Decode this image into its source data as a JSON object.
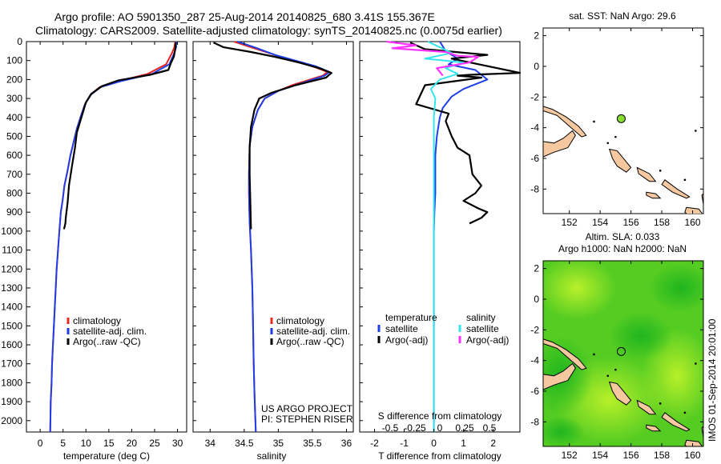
{
  "header": {
    "line1": "Argo profile: AO 5901350_287 25-Aug-2014 20140825_680 3.41S 155.367E",
    "line2": "Climatology: CARS2009. Satellite-adjusted climatology: synTS_20140825.nc (0.0075d earlier)"
  },
  "footer": {
    "stamp": "IMOS 01-Sep-2014 20:01:00"
  },
  "colors": {
    "climatology": "#e8241e",
    "satellite": "#1f3fe6",
    "argo": "#000000",
    "argo_sal_diff": "#ff33ff",
    "sat_sal_diff": "#33e6ee",
    "land": "#f5c8a0",
    "marker_sst": "#88dd33"
  },
  "chart_data": [
    {
      "type": "line",
      "ylabel": "",
      "xlabel": "temperature (deg C)",
      "xlim": [
        -3,
        32
      ],
      "ylim": [
        2060,
        0
      ],
      "xticks": [
        "0",
        "5",
        "10",
        "15",
        "20",
        "25",
        "30"
      ],
      "yticks": [
        "0",
        "100",
        "200",
        "300",
        "400",
        "500",
        "600",
        "700",
        "800",
        "900",
        "1000",
        "1100",
        "1200",
        "1300",
        "1400",
        "1500",
        "1600",
        "1700",
        "1800",
        "1900",
        "2000"
      ],
      "legend": [
        "climatology",
        "satellite-adj. clim.",
        "Argo(..raw -QC)"
      ],
      "legend_position": "lower-center",
      "series": [
        {
          "name": "climatology",
          "x": [
            29.5,
            29.3,
            28.8,
            27.5,
            23.5,
            17,
            13,
            11,
            9.8,
            8.8,
            8.0,
            7.3,
            6.6,
            6.0,
            5.3,
            4.9,
            4.5,
            4.2,
            3.9,
            3.6,
            3.4,
            3.2,
            3.0,
            2.8,
            2.6,
            2.5,
            2.3,
            2.2
          ],
          "y": [
            0,
            30,
            60,
            120,
            170,
            210,
            240,
            280,
            330,
            400,
            460,
            530,
            600,
            680,
            760,
            840,
            900,
            1000,
            1100,
            1200,
            1300,
            1400,
            1500,
            1600,
            1700,
            1800,
            1900,
            2060
          ]
        },
        {
          "name": "satellite-adj. clim.",
          "x": [
            29.7,
            29.7,
            29.3,
            28.2,
            24.5,
            17.5,
            13.2,
            11.1,
            9.8,
            8.8,
            8.0,
            7.3,
            6.6,
            6.0,
            5.3,
            4.9,
            4.5,
            4.2,
            3.9,
            3.6,
            3.4,
            3.2,
            3.0,
            2.8,
            2.6,
            2.5,
            2.3,
            2.2
          ],
          "y": [
            0,
            30,
            60,
            120,
            170,
            210,
            240,
            280,
            330,
            400,
            460,
            530,
            600,
            680,
            760,
            840,
            900,
            1000,
            1100,
            1200,
            1300,
            1400,
            1500,
            1600,
            1700,
            1800,
            1900,
            2060
          ]
        },
        {
          "name": "Argo(..raw -QC)",
          "x": [
            29.6,
            29.5,
            29.2,
            28.6,
            28.0,
            24,
            17,
            13.5,
            11.2,
            10.0,
            9.0,
            8.0,
            7.6,
            7.0,
            6.3,
            6.0,
            5.6,
            5.5,
            5.2
          ],
          "y": [
            5,
            40,
            80,
            110,
            150,
            175,
            205,
            235,
            275,
            320,
            400,
            480,
            560,
            650,
            760,
            850,
            930,
            960,
            990
          ]
        }
      ]
    },
    {
      "type": "line",
      "xlabel": "salinity",
      "xlim": [
        33.75,
        36.1
      ],
      "ylim": [
        2060,
        0
      ],
      "xticks": [
        "34",
        "34.5",
        "35",
        "35.5",
        "36"
      ],
      "legend": [
        "climatology",
        "satellite-adj. clim.",
        "Argo(..raw -QC)"
      ],
      "annotation": [
        "US ARGO PROJECT",
        "PI: STEPHEN RISER"
      ],
      "series": [
        {
          "name": "climatology",
          "x": [
            34.35,
            34.6,
            34.95,
            35.2,
            35.5,
            35.72,
            35.65,
            35.2,
            35.0,
            34.8,
            34.7,
            34.62,
            34.58,
            34.57,
            34.57,
            34.58,
            34.6,
            34.62,
            34.63,
            34.64,
            34.65,
            34.66,
            34.67
          ],
          "y": [
            0,
            30,
            70,
            100,
            130,
            160,
            180,
            230,
            260,
            300,
            360,
            450,
            550,
            700,
            800,
            950,
            1100,
            1300,
            1500,
            1700,
            1850,
            1950,
            2060
          ]
        },
        {
          "name": "satellite-adj. clim.",
          "x": [
            34.4,
            34.65,
            34.95,
            35.25,
            35.55,
            35.75,
            35.68,
            35.25,
            35.0,
            34.8,
            34.7,
            34.62,
            34.58,
            34.57,
            34.57,
            34.58,
            34.6,
            34.62,
            34.63,
            34.64,
            34.65,
            34.66,
            34.67
          ],
          "y": [
            0,
            30,
            70,
            100,
            130,
            160,
            180,
            230,
            260,
            300,
            360,
            450,
            550,
            700,
            800,
            950,
            1100,
            1300,
            1500,
            1700,
            1850,
            1950,
            2060
          ]
        },
        {
          "name": "Argo(..raw -QC)",
          "x": [
            34.05,
            34.2,
            34.6,
            34.95,
            35.3,
            35.6,
            35.78,
            35.7,
            35.25,
            34.9,
            34.72,
            34.65,
            34.6,
            34.58,
            34.58,
            34.59,
            34.6
          ],
          "y": [
            5,
            30,
            55,
            80,
            110,
            140,
            165,
            190,
            230,
            270,
            300,
            360,
            450,
            560,
            700,
            850,
            990
          ]
        }
      ]
    },
    {
      "type": "line",
      "xlabel": "T difference from climatology",
      "xlabel_top": "S difference from climatology",
      "xlim": [
        -2.5,
        2.9
      ],
      "ylim": [
        2060,
        0
      ],
      "xticks_bottom": [
        "-2",
        "-1",
        "0",
        "1",
        "2"
      ],
      "xticks_top": [
        "-0.5",
        "-0.25",
        "0",
        "0.25",
        "0.5"
      ],
      "legend": [
        "temperature",
        "salinity",
        "satellite",
        "satellite",
        "Argo(-adj)",
        "Argo(-adj)"
      ],
      "series": [
        {
          "name": "temperature satellite",
          "x": [
            0.2,
            0.4,
            0.8,
            0.5,
            1.4,
            1.8,
            1.0,
            0.6,
            0.3,
            0.2,
            0.1,
            0.05,
            0.05,
            0.05,
            0.02,
            0,
            0,
            0,
            0,
            0,
            0
          ],
          "y": [
            0,
            50,
            90,
            120,
            150,
            200,
            250,
            290,
            350,
            400,
            500,
            600,
            700,
            800,
            900,
            1000,
            1200,
            1400,
            1600,
            1800,
            2060
          ]
        },
        {
          "name": "temperature Argo(-adj)",
          "x": [
            -0.8,
            -0.3,
            1.8,
            0.6,
            2.9,
            1.2,
            0.8,
            1.6,
            -0.3,
            -0.6,
            0.5,
            0.4,
            0.6,
            0.8,
            1.2,
            1.3,
            1.6,
            1.4,
            1.0,
            1.5,
            1.8,
            1.6,
            1.2
          ],
          "y": [
            5,
            40,
            70,
            90,
            165,
            175,
            180,
            190,
            230,
            330,
            380,
            420,
            500,
            560,
            600,
            700,
            760,
            800,
            840,
            880,
            900,
            930,
            960
          ]
        },
        {
          "name": "salinity satellite",
          "x": [
            -0.2,
            0.6,
            -0.3,
            1.0,
            0.4,
            0.8,
            0.2,
            -0.1,
            0.05,
            0,
            0,
            0,
            0,
            0,
            0,
            0,
            0,
            0,
            0
          ],
          "y": [
            0,
            60,
            90,
            110,
            140,
            170,
            200,
            250,
            300,
            400,
            500,
            700,
            900,
            1100,
            1300,
            1500,
            1700,
            1900,
            2060
          ]
        },
        {
          "name": "salinity Argo(-adj)",
          "x": [
            -1.6,
            -0.6,
            -1.4,
            0.4,
            0.8,
            1.5,
            1.2,
            0.1,
            0.3
          ],
          "y": [
            0,
            20,
            35,
            55,
            75,
            80,
            110,
            140,
            180
          ]
        }
      ]
    },
    {
      "type": "map",
      "title": "sat. SST: NaN Argo: 29.6",
      "xticks": [
        "152",
        "154",
        "156",
        "158",
        "160"
      ],
      "yticks": [
        "2",
        "0",
        "-2",
        "-4",
        "-6",
        "-8"
      ],
      "xlim": [
        150.3,
        160.7
      ],
      "ylim": [
        -9.6,
        2.5
      ],
      "marker": {
        "lon": 155.367,
        "lat": -3.41
      }
    },
    {
      "type": "map",
      "title": "Altim. SLA: 0.033",
      "subtitle": "Argo h1000: NaN h2000: NaN",
      "xticks": [
        "152",
        "154",
        "156",
        "158",
        "160"
      ],
      "yticks": [
        "2",
        "0",
        "-2",
        "-4",
        "-6",
        "-8"
      ],
      "xlim": [
        150.3,
        160.7
      ],
      "ylim": [
        -9.6,
        2.5
      ],
      "marker": {
        "lon": 155.367,
        "lat": -3.41
      }
    }
  ]
}
